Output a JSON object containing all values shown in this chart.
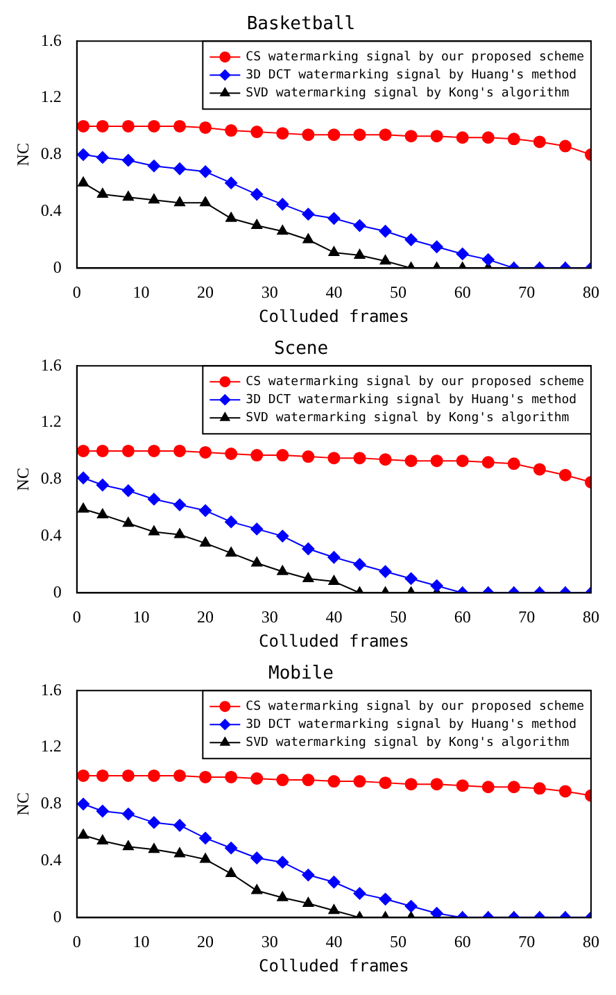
{
  "chart_data": [
    {
      "type": "line",
      "title": "Basketball",
      "xlabel": "Colluded frames",
      "ylabel": "NC",
      "x": [
        1,
        4,
        8,
        12,
        16,
        20,
        24,
        28,
        32,
        36,
        40,
        44,
        48,
        52,
        56,
        60,
        64,
        68,
        72,
        76,
        80
      ],
      "xlim": [
        0,
        80
      ],
      "xticks": [
        0,
        10,
        20,
        30,
        40,
        50,
        60,
        70,
        80
      ],
      "ylim": [
        0,
        1.6
      ],
      "yticks": [
        0,
        0.4,
        0.8,
        1.2,
        1.6
      ],
      "grid": false,
      "legend": "top right",
      "series": [
        {
          "name": "CS watermarking signal by our proposed scheme",
          "color": "#ff0000",
          "marker": "circle",
          "values": [
            1.0,
            1.0,
            1.0,
            1.0,
            1.0,
            0.99,
            0.97,
            0.96,
            0.95,
            0.94,
            0.94,
            0.94,
            0.94,
            0.93,
            0.93,
            0.92,
            0.92,
            0.91,
            0.89,
            0.86,
            0.8
          ]
        },
        {
          "name": "3D DCT watermarking signal by Huang's method",
          "color": "#0000ff",
          "marker": "diamond",
          "values": [
            0.8,
            0.78,
            0.76,
            0.72,
            0.7,
            0.68,
            0.6,
            0.52,
            0.45,
            0.38,
            0.35,
            0.3,
            0.26,
            0.2,
            0.15,
            0.1,
            0.06,
            0,
            0,
            0,
            0
          ]
        },
        {
          "name": "SVD watermarking signal by Kong's algorithm",
          "color": "#000000",
          "marker": "triangle",
          "values": [
            0.6,
            0.52,
            0.5,
            0.48,
            0.46,
            0.46,
            0.35,
            0.3,
            0.26,
            0.2,
            0.11,
            0.09,
            0.05,
            0,
            0,
            0,
            0,
            0,
            0,
            0,
            0
          ]
        }
      ]
    },
    {
      "type": "line",
      "title": "Scene",
      "xlabel": "Colluded frames",
      "ylabel": "NC",
      "x": [
        1,
        4,
        8,
        12,
        16,
        20,
        24,
        28,
        32,
        36,
        40,
        44,
        48,
        52,
        56,
        60,
        64,
        68,
        72,
        76,
        80
      ],
      "xlim": [
        0,
        80
      ],
      "xticks": [
        0,
        10,
        20,
        30,
        40,
        50,
        60,
        70,
        80
      ],
      "ylim": [
        0,
        1.6
      ],
      "yticks": [
        0,
        0.4,
        0.8,
        1.2,
        1.6
      ],
      "grid": false,
      "legend": "top right",
      "series": [
        {
          "name": "CS watermarking signal by our proposed scheme",
          "color": "#ff0000",
          "marker": "circle",
          "values": [
            1.0,
            1.0,
            1.0,
            1.0,
            1.0,
            0.99,
            0.98,
            0.97,
            0.97,
            0.96,
            0.95,
            0.95,
            0.94,
            0.93,
            0.93,
            0.93,
            0.92,
            0.91,
            0.87,
            0.83,
            0.78
          ]
        },
        {
          "name": "3D DCT watermarking signal by Huang's method",
          "color": "#0000ff",
          "marker": "diamond",
          "values": [
            0.81,
            0.76,
            0.72,
            0.66,
            0.62,
            0.58,
            0.5,
            0.45,
            0.4,
            0.31,
            0.25,
            0.2,
            0.15,
            0.1,
            0.05,
            0,
            0,
            0,
            0,
            0,
            0
          ]
        },
        {
          "name": "SVD watermarking signal by Kong's algorithm",
          "color": "#000000",
          "marker": "triangle",
          "values": [
            0.59,
            0.55,
            0.49,
            0.43,
            0.41,
            0.35,
            0.28,
            0.21,
            0.15,
            0.1,
            0.08,
            0,
            0,
            0,
            0,
            0,
            0,
            0,
            0,
            0,
            0
          ]
        }
      ]
    },
    {
      "type": "line",
      "title": "Mobile",
      "xlabel": "Colluded frames",
      "ylabel": "NC",
      "x": [
        1,
        4,
        8,
        12,
        16,
        20,
        24,
        28,
        32,
        36,
        40,
        44,
        48,
        52,
        56,
        60,
        64,
        68,
        72,
        76,
        80
      ],
      "xlim": [
        0,
        80
      ],
      "xticks": [
        0,
        10,
        20,
        30,
        40,
        50,
        60,
        70,
        80
      ],
      "ylim": [
        0,
        1.6
      ],
      "yticks": [
        0,
        0.4,
        0.8,
        1.2,
        1.6
      ],
      "grid": false,
      "legend": "top right",
      "series": [
        {
          "name": "CS watermarking signal by our proposed scheme",
          "color": "#ff0000",
          "marker": "circle",
          "values": [
            1.0,
            1.0,
            1.0,
            1.0,
            1.0,
            0.99,
            0.99,
            0.98,
            0.97,
            0.97,
            0.96,
            0.96,
            0.95,
            0.94,
            0.94,
            0.93,
            0.92,
            0.92,
            0.91,
            0.89,
            0.86
          ]
        },
        {
          "name": "3D DCT watermarking signal by Huang's method",
          "color": "#0000ff",
          "marker": "diamond",
          "values": [
            0.8,
            0.75,
            0.73,
            0.67,
            0.65,
            0.56,
            0.49,
            0.42,
            0.39,
            0.3,
            0.25,
            0.17,
            0.13,
            0.08,
            0.03,
            0,
            0,
            0,
            0,
            0,
            0
          ]
        },
        {
          "name": "SVD watermarking signal by Kong's algorithm",
          "color": "#000000",
          "marker": "triangle",
          "values": [
            0.58,
            0.54,
            0.5,
            0.48,
            0.45,
            0.41,
            0.31,
            0.19,
            0.14,
            0.1,
            0.05,
            0,
            0,
            0,
            0,
            0,
            0,
            0,
            0,
            0,
            0
          ]
        }
      ]
    }
  ]
}
